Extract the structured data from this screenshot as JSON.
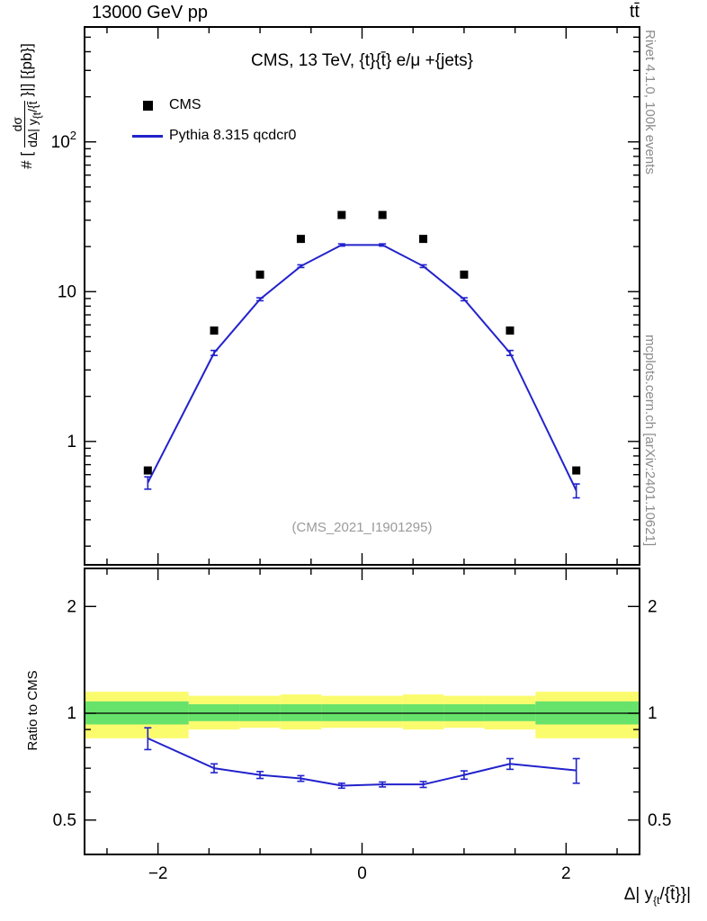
{
  "header": {
    "left": "13000 GeV pp",
    "right": "tt̄"
  },
  "panel_title": "CMS, 13 TeV, {t}{t̄} e/μ +{jets}",
  "legend": [
    {
      "label": "CMS",
      "marker": "filled-square",
      "color": "#000000"
    },
    {
      "label": "Pythia 8.315 qcdcr0",
      "marker": "line",
      "color": "#2222cc"
    }
  ],
  "watermark": "(CMS_2021_I1901295)",
  "side_labels": {
    "top_right": "Rivet 4.1.0, 100k events",
    "bottom_right": "mcplots.cern.ch [arXiv:2401.10621]"
  },
  "axes": {
    "x_label": {
      "pre": "Δ| y",
      "sub": "{t",
      "post": "/{t̄}}|"
    },
    "y_label": {
      "prefix": "# [",
      "num": "dσ",
      "den_pre": "dΔ| y",
      "den_sub": "{t",
      "den_post": "/{t̄",
      "suffix": "}|] [{pb}]"
    },
    "ratio_label": "Ratio to CMS"
  },
  "chart_data": {
    "type": "line",
    "title": "CMS, 13 TeV, {t}{t̄} e/μ +{jets}",
    "xlabel": "Δ| y_{t}/{t̄}}|",
    "ylabel": "# [dσ/dΔ| y_{t}/{t̄}}|] [{pb}]",
    "yscale": "log",
    "ratio_yscale": "log",
    "grid": false,
    "legend_position": "top-left",
    "x": [
      -2.1,
      -1.45,
      -1.0,
      -0.6,
      -0.2,
      0.2,
      0.6,
      1.0,
      1.45,
      2.1
    ],
    "series": [
      {
        "name": "CMS",
        "type": "scatter",
        "marker": "square",
        "color": "#000000",
        "values": [
          0.64,
          5.5,
          13.0,
          22.5,
          32.5,
          32.5,
          22.5,
          13.0,
          5.5,
          0.64
        ]
      },
      {
        "name": "Pythia 8.315 qcdcr0",
        "type": "line",
        "color": "#2222cc",
        "values": [
          0.53,
          3.9,
          8.9,
          14.8,
          20.5,
          20.5,
          14.8,
          8.9,
          3.9,
          0.47
        ],
        "yerr": [
          0.05,
          0.15,
          0.2,
          0.3,
          0.35,
          0.35,
          0.3,
          0.2,
          0.15,
          0.05
        ]
      }
    ],
    "ratio": {
      "name": "Pythia 8.315 qcdcr0 / CMS",
      "values": [
        0.85,
        0.7,
        0.67,
        0.655,
        0.625,
        0.63,
        0.63,
        0.67,
        0.72,
        0.69
      ],
      "yerr": [
        0.06,
        0.02,
        0.015,
        0.012,
        0.01,
        0.01,
        0.012,
        0.018,
        0.025,
        0.055
      ]
    },
    "bands": {
      "edges": [
        -2.72,
        -1.7,
        -1.2,
        -0.8,
        -0.4,
        0.0,
        0.4,
        0.8,
        1.2,
        1.7,
        2.72
      ],
      "yellow_lo": [
        0.85,
        0.9,
        0.91,
        0.9,
        0.91,
        0.91,
        0.9,
        0.91,
        0.9,
        0.85
      ],
      "yellow_hi": [
        1.15,
        1.12,
        1.12,
        1.13,
        1.12,
        1.12,
        1.13,
        1.12,
        1.12,
        1.15
      ],
      "green_lo": [
        0.93,
        0.95,
        0.95,
        0.95,
        0.95,
        0.95,
        0.95,
        0.95,
        0.95,
        0.93
      ],
      "green_hi": [
        1.08,
        1.06,
        1.06,
        1.06,
        1.06,
        1.06,
        1.06,
        1.06,
        1.06,
        1.08
      ]
    },
    "xlim": [
      -2.72,
      2.72
    ],
    "ylim": [
      0.15,
      585
    ],
    "ratio_ylim": [
      0.4,
      2.56
    ],
    "xticks": [
      -2,
      0,
      2
    ],
    "yticks": [
      1,
      10,
      100
    ],
    "ratio_yticks": [
      0.5,
      1,
      2
    ],
    "colors": {
      "mc": "#2222cc",
      "band_yellow": "#fbfb6e",
      "band_green": "#67e26b",
      "ref_line": "#000000",
      "watermark": "#9a9a9a",
      "side_text": "#8c8c8c"
    }
  }
}
